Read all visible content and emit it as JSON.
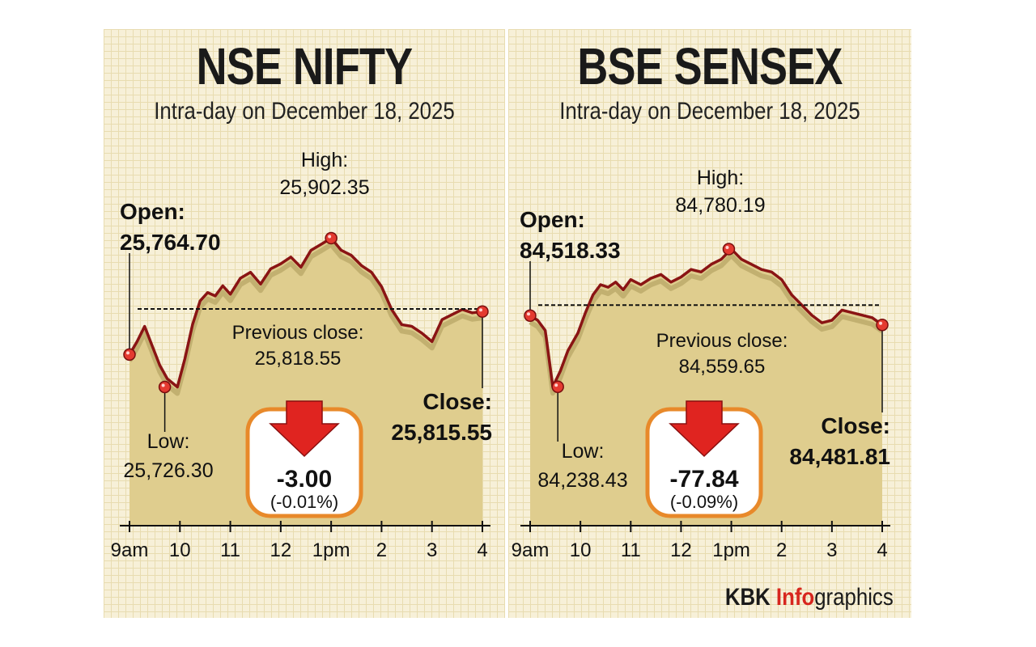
{
  "footer": {
    "brand": "KBK",
    "accent": "Info",
    "rest": "graphics"
  },
  "colors": {
    "line": "#8a1414",
    "fill": "#dfcd8e",
    "shadow": "#c2b070",
    "marker": "#e43a30",
    "badge_border": "#e8892a",
    "arrow": "#e02420"
  },
  "chart_data": [
    {
      "type": "line",
      "title": "NSE NIFTY",
      "subtitle": "Intra-day on December 18, 2025",
      "x_ticks": [
        "9am",
        "10",
        "11",
        "12",
        "1pm",
        "2",
        "3",
        "4"
      ],
      "x": [
        9.0,
        9.15,
        9.3,
        9.45,
        9.6,
        9.75,
        9.95,
        10.1,
        10.25,
        10.4,
        10.55,
        10.7,
        10.85,
        11.0,
        11.2,
        11.4,
        11.6,
        11.8,
        12.0,
        12.2,
        12.4,
        12.6,
        12.8,
        13.0,
        13.2,
        13.4,
        13.6,
        13.8,
        14.0,
        14.2,
        14.4,
        14.6,
        14.8,
        15.0,
        15.2,
        15.4,
        15.6,
        15.8,
        16.0
      ],
      "values": [
        25764.7,
        25780,
        25798,
        25775,
        25752,
        25736,
        25726.3,
        25760,
        25800,
        25828,
        25838,
        25834,
        25846,
        25836,
        25855,
        25862,
        25848,
        25866,
        25872,
        25880,
        25868,
        25888,
        25895,
        25902.35,
        25888,
        25882,
        25870,
        25862,
        25845,
        25818,
        25800,
        25798,
        25790,
        25780,
        25806,
        25812,
        25818,
        25814,
        25815.55
      ],
      "ylim": [
        25700,
        25920
      ],
      "open": {
        "label": "Open:",
        "value": "25,764.70"
      },
      "high": {
        "label": "High:",
        "value": "25,902.35"
      },
      "low": {
        "label": "Low:",
        "value": "25,726.30"
      },
      "close": {
        "label": "Close:",
        "value": "25,815.55"
      },
      "prev_close": {
        "label": "Previous close:",
        "value": "25,818.55",
        "level": 25818.55
      },
      "change": {
        "value": "-3.00",
        "percent": "(-0.01%)"
      },
      "markers": [
        {
          "x": 9.0,
          "y": 25764.7
        },
        {
          "x": 9.7,
          "y": 25726.3
        },
        {
          "x": 13.0,
          "y": 25902.35
        },
        {
          "x": 16.0,
          "y": 25815.55
        }
      ]
    },
    {
      "type": "line",
      "title": "BSE SENSEX",
      "subtitle": "Intra-day on December 18, 2025",
      "x_ticks": [
        "9am",
        "10",
        "11",
        "12",
        "1pm",
        "2",
        "3",
        "4"
      ],
      "x": [
        9.0,
        9.15,
        9.3,
        9.45,
        9.6,
        9.75,
        9.95,
        10.1,
        10.25,
        10.4,
        10.55,
        10.7,
        10.85,
        11.0,
        11.2,
        11.4,
        11.6,
        11.8,
        12.0,
        12.2,
        12.4,
        12.6,
        12.8,
        13.0,
        13.2,
        13.4,
        13.6,
        13.8,
        14.0,
        14.2,
        14.4,
        14.6,
        14.8,
        15.0,
        15.2,
        15.4,
        15.6,
        15.8,
        16.0
      ],
      "values": [
        84518.33,
        84500,
        84460,
        84238.43,
        84300,
        84380,
        84450,
        84530,
        84600,
        84640,
        84630,
        84650,
        84620,
        84660,
        84640,
        84665,
        84680,
        84650,
        84670,
        84700,
        84690,
        84720,
        84740,
        84780.19,
        84740,
        84720,
        84700,
        84690,
        84660,
        84600,
        84560,
        84520,
        84490,
        84500,
        84540,
        84530,
        84520,
        84510,
        84481.81
      ],
      "ylim": [
        84150,
        84850
      ],
      "open": {
        "label": "Open:",
        "value": "84,518.33"
      },
      "high": {
        "label": "High:",
        "value": "84,780.19"
      },
      "low": {
        "label": "Low:",
        "value": "84,238.43"
      },
      "close": {
        "label": "Close:",
        "value": "84,481.81"
      },
      "prev_close": {
        "label": "Previous close:",
        "value": "84,559.65",
        "level": 84559.65
      },
      "change": {
        "value": "-77.84",
        "percent": "(-0.09%)"
      },
      "markers": [
        {
          "x": 9.0,
          "y": 84518.33
        },
        {
          "x": 9.55,
          "y": 84238.43
        },
        {
          "x": 12.95,
          "y": 84780.19
        },
        {
          "x": 16.0,
          "y": 84481.81
        }
      ]
    }
  ]
}
